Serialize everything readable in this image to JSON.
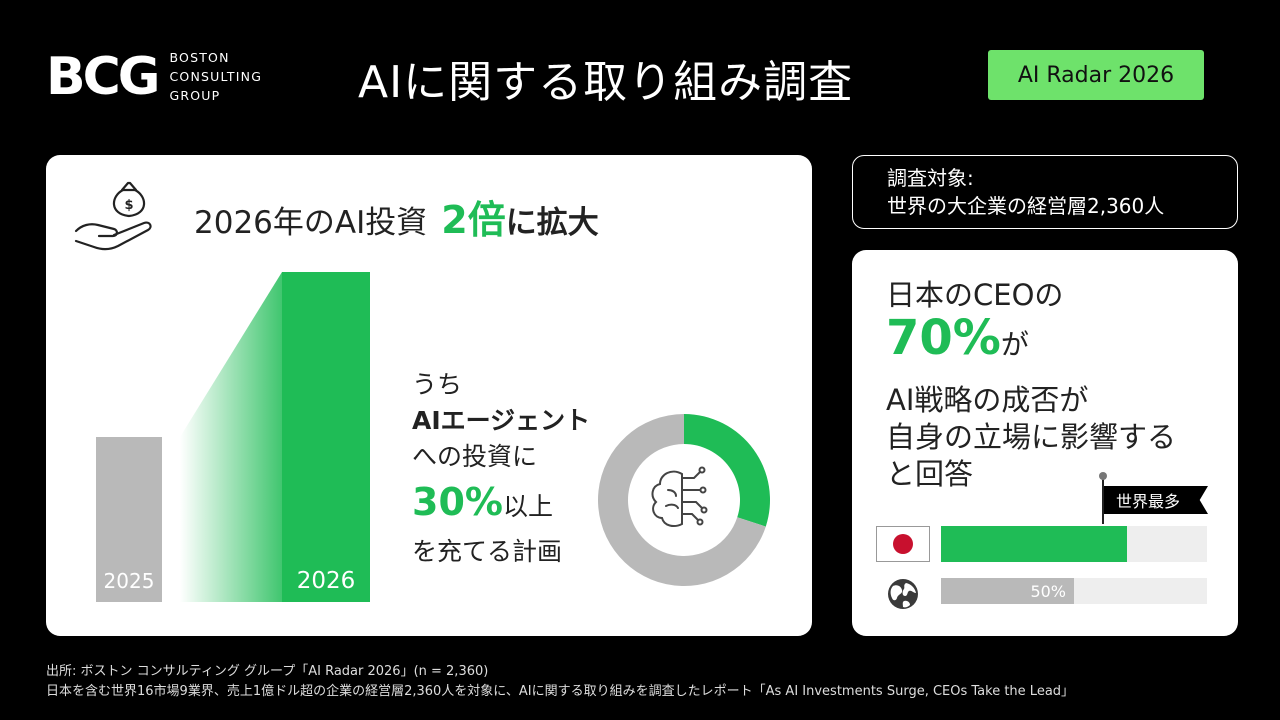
{
  "header": {
    "logo_mark": "BCG",
    "logo_words": [
      "BOSTON",
      "CONSULTING",
      "GROUP"
    ],
    "title": "AIに関する取り組み調査",
    "badge": "AI Radar 2026"
  },
  "left_panel": {
    "hand_icon": "money-bag-hand-icon",
    "headline_prefix": "2026年のAI投資",
    "headline_accent": "2倍",
    "headline_suffix": "に拡大",
    "chart_data": {
      "type": "bar",
      "categories": [
        "2025",
        "2026"
      ],
      "values": [
        1,
        2
      ],
      "colors": [
        "#b9b9b9",
        "#1fbc56"
      ]
    },
    "sub": {
      "line1": "うち",
      "line2": "AIエージェント",
      "line3": "への投資に",
      "pct": "30%",
      "pct_after": "以上",
      "line5": "を充てる計画"
    },
    "donut": {
      "type": "pie",
      "share": 0.3,
      "colors": [
        "#1fbc56",
        "#b9b9b9"
      ],
      "center_icon": "brain-circuit-icon"
    }
  },
  "target": {
    "line1": "調査対象:",
    "line2": "世界の大企業の経営層2,360人"
  },
  "right_panel": {
    "line1": "日本のCEOの",
    "pct": "70%",
    "pct_after": "が",
    "text_lines": [
      "AI戦略の成否が",
      "自身の立場に影響する",
      "と回答"
    ],
    "marker_label": "世界最多",
    "chart_data": {
      "type": "bar",
      "categories": [
        "japan",
        "global"
      ],
      "values": [
        70,
        50
      ],
      "value_labels": [
        "",
        "50%"
      ],
      "colors": [
        "#1fbc56",
        "#b9b9b9"
      ]
    },
    "japan_icon": "japan-flag-icon",
    "global_icon": "globe-icon"
  },
  "footer": {
    "line1": "出所: ボストン コンサルティング グループ「AI Radar 2026」(n = 2,360)",
    "line2": "日本を含む世界16市場9業界、売上1億ドル超の企業の経営層2,360人を対象に、AIに関する取り組みを調査したレポート「As AI Investments Surge, CEOs Take the Lead」"
  }
}
